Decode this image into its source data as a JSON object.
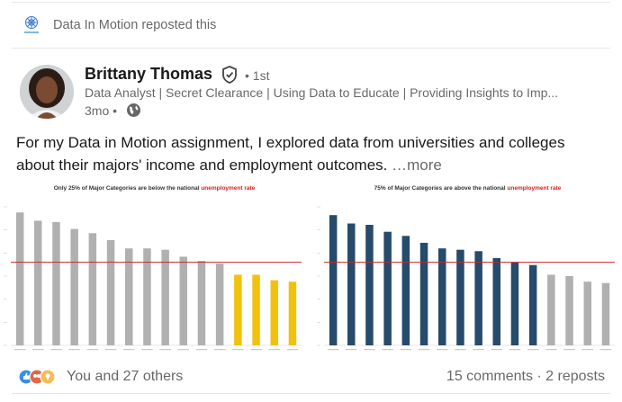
{
  "repost": {
    "text": "Data In Motion reposted this",
    "logo_icon": "data-in-motion-logo"
  },
  "author": {
    "name": "Brittany Thomas",
    "degree": "• 1st",
    "headline": "Data Analyst | Secret Clearance | Using Data to Educate | Providing Insights to Imp...",
    "time": "3mo •",
    "verified_icon": "verified-shield-icon",
    "visibility_icon": "globe-icon"
  },
  "post": {
    "text": "For my Data in Motion assignment, I explored data from universities and colleges about their majors' income and employment outcomes.",
    "more": "…more"
  },
  "charts": {
    "left": {
      "title_pre": "Only 25% of Major Categories are below the national",
      "title_highlight": "unemployment rate"
    },
    "right": {
      "title_pre": "75% of Major Categories are above the national",
      "title_highlight": "unemployment rate"
    }
  },
  "chart_data": [
    {
      "type": "bar",
      "title": "Only 25% of Major Categories are below the national unemployment rate",
      "values": [
        0.96,
        0.9,
        0.89,
        0.84,
        0.81,
        0.76,
        0.7,
        0.7,
        0.69,
        0.64,
        0.61,
        0.59,
        0.51,
        0.51,
        0.47,
        0.46
      ],
      "reference_line": 0.6,
      "colors": {
        "above": "#b0b0b0",
        "below": "#f2c10f",
        "line": "#c62828"
      },
      "highlight_from_index": 12
    },
    {
      "type": "bar",
      "title": "75% of Major Categories are above the national unemployment rate",
      "values": [
        0.94,
        0.88,
        0.87,
        0.82,
        0.79,
        0.74,
        0.7,
        0.69,
        0.68,
        0.63,
        0.6,
        0.58,
        0.51,
        0.5,
        0.46,
        0.45
      ],
      "reference_line": 0.6,
      "colors": {
        "above": "#264b6b",
        "below": "#b0b0b0",
        "line": "#c62828"
      },
      "highlight_until_index": 11
    }
  ],
  "footer": {
    "reactions_text": "You and 27 others",
    "comments_reposts": "15 comments · 2 reposts",
    "reaction_icons": [
      "like-icon",
      "celebrate-icon",
      "insightful-icon"
    ]
  }
}
